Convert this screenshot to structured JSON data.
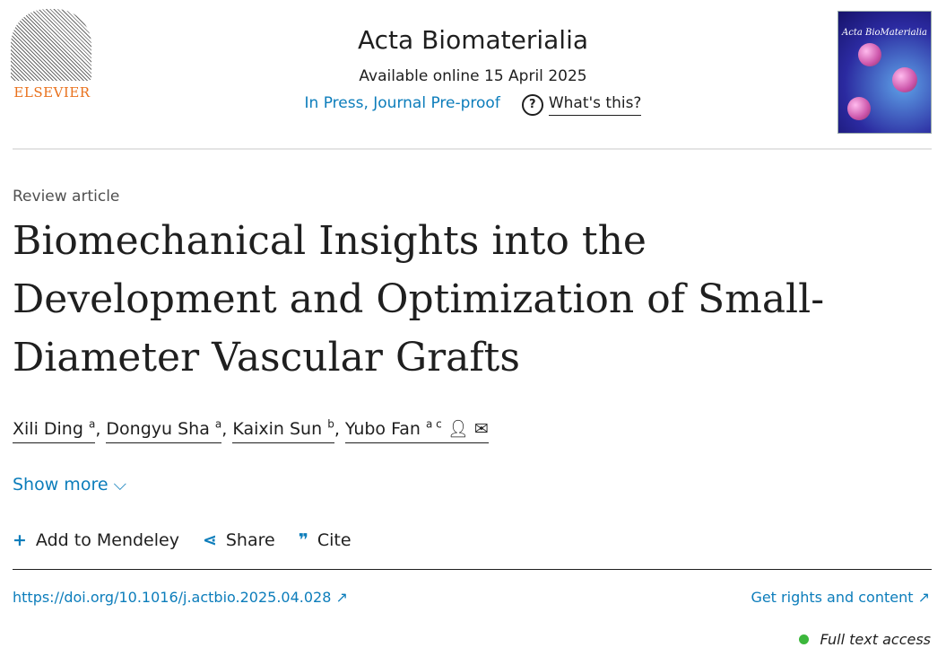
{
  "publisher": {
    "name": "ELSEVIER"
  },
  "journal": {
    "title": "Acta Biomaterialia",
    "available": "Available online 15 April 2025",
    "status": "In Press, Journal Pre-proof",
    "whats_this": "What's this?",
    "cover_title": "Acta BioMaterialia"
  },
  "article": {
    "type": "Review article",
    "title": "Biomechanical Insights into the Development and Optimization of Small-Diameter Vascular Grafts"
  },
  "authors": [
    {
      "name": "Xili Ding",
      "aff": "a"
    },
    {
      "name": "Dongyu Sha",
      "aff": "a"
    },
    {
      "name": "Kaixin Sun",
      "aff": "b"
    },
    {
      "name": "Yubo Fan",
      "aff": "a c"
    }
  ],
  "show_more": "Show more",
  "actions": {
    "mendeley": "Add to Mendeley",
    "share": "Share",
    "cite": "Cite"
  },
  "doi": "https://doi.org/10.1016/j.actbio.2025.04.028 ↗",
  "rights": "Get rights and content ↗",
  "access": "Full text access"
}
